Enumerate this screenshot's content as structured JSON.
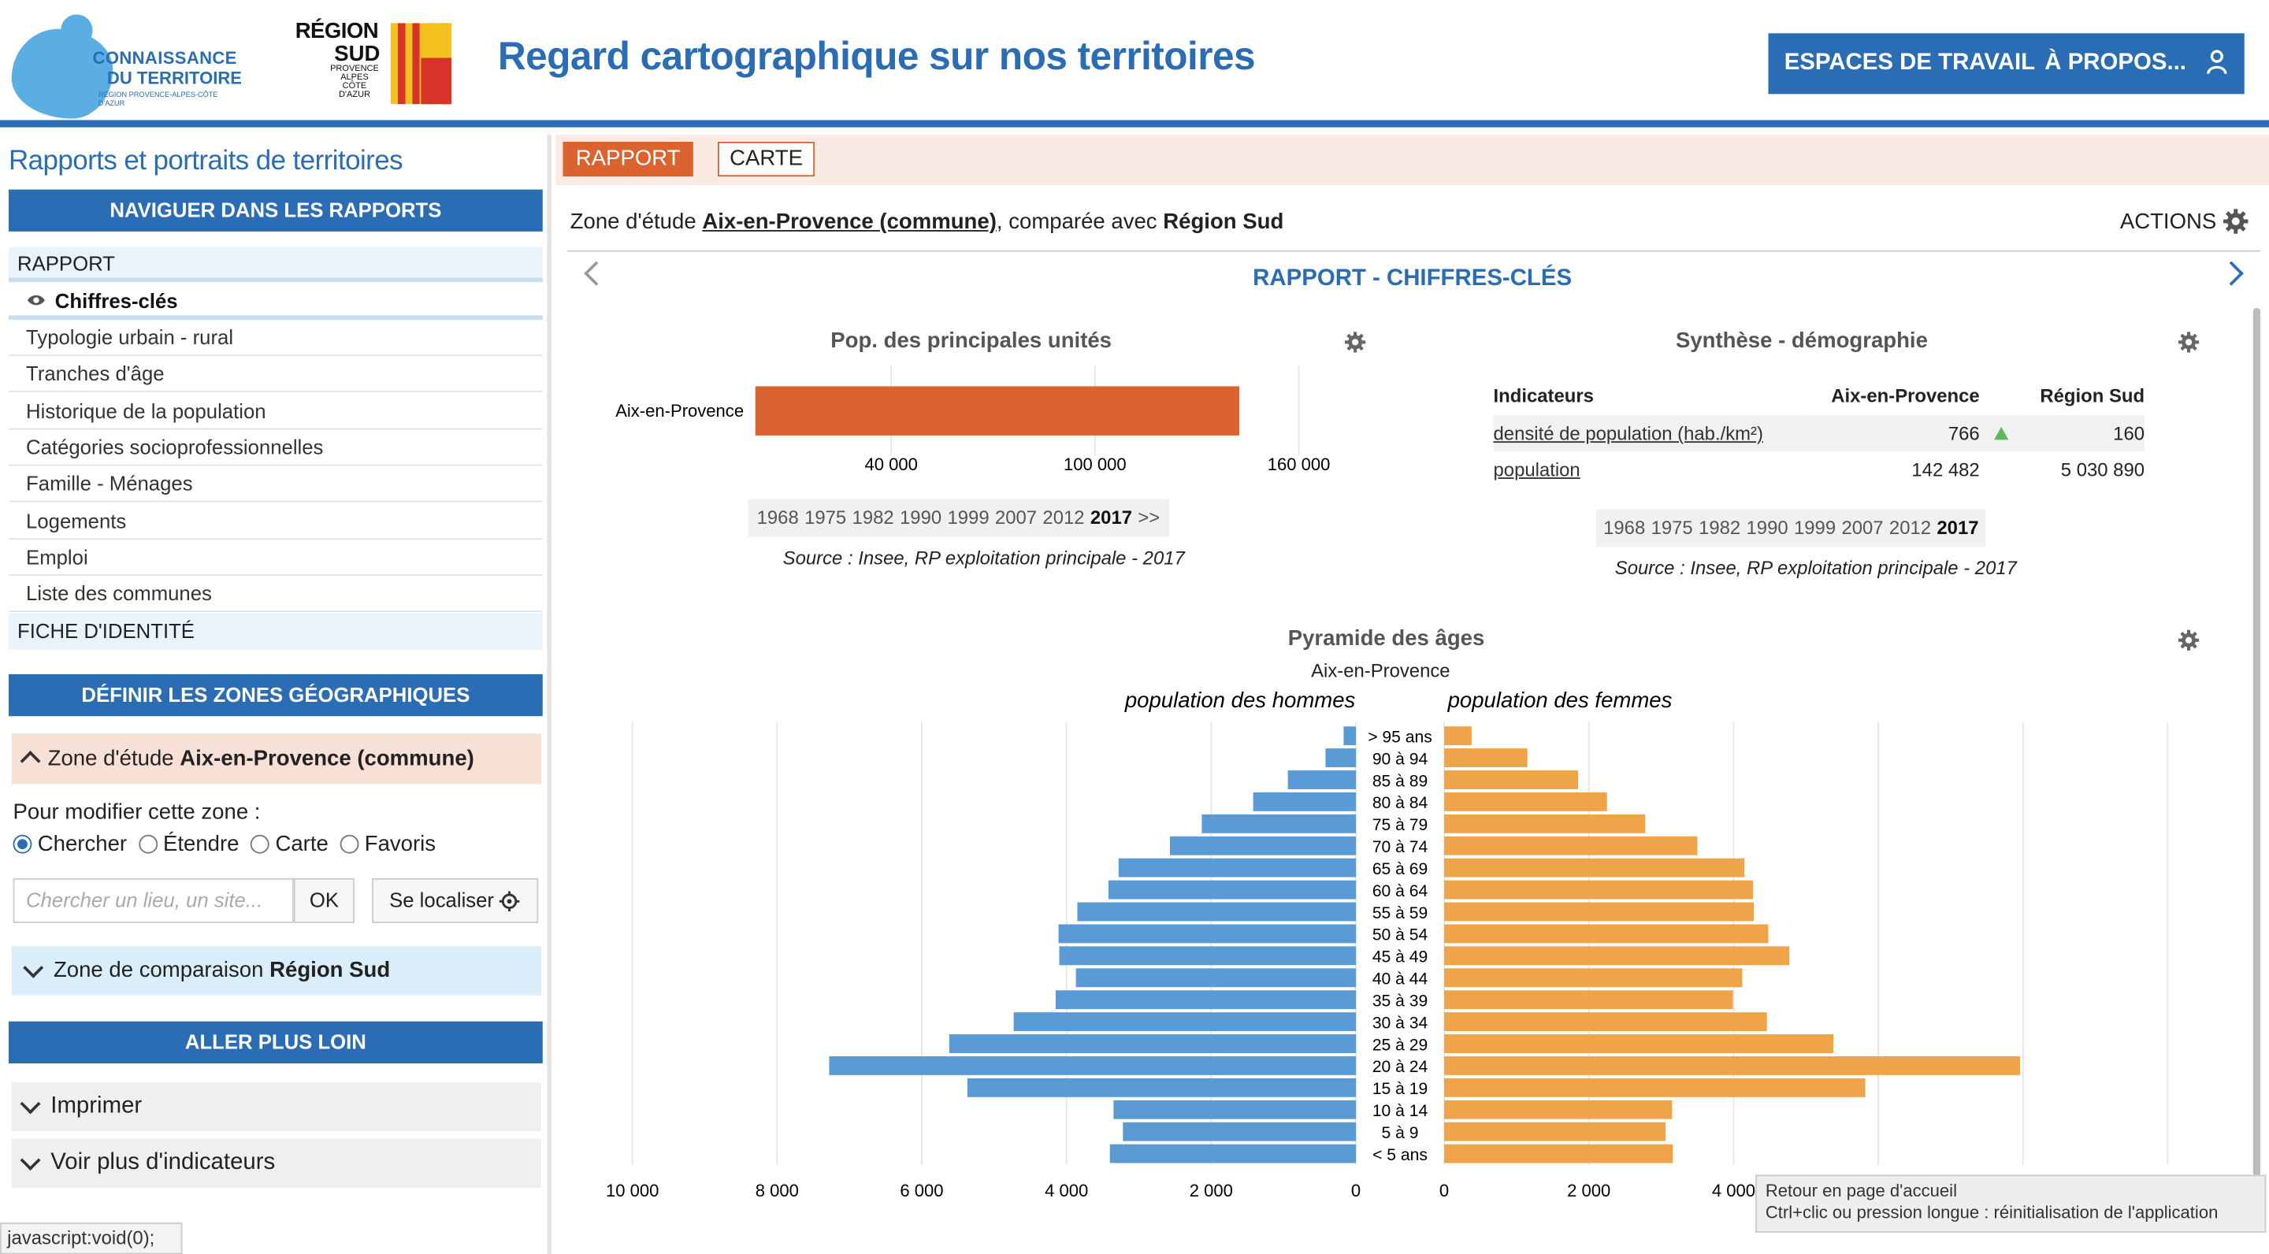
{
  "header": {
    "logo_ct": {
      "line1": "CONNAISSANCE",
      "line2": "DU TERRITOIRE",
      "tagline": "RÉGION PROVENCE-ALPES-CÔTE D'AZUR"
    },
    "logo_rs": {
      "line1": "RÉGION",
      "line2": "SUD",
      "line3": "PROVENCE ALPES CÔTE D'AZUR"
    },
    "title": "Regard cartographique sur nos territoires",
    "nav": {
      "workspaces": "ESPACES DE TRAVAIL",
      "about": "À PROPOS...",
      "user_icon": "user-icon"
    }
  },
  "sidebar": {
    "title": "Rapports et portraits de territoires",
    "nav_button": "NAVIGUER DANS LES RAPPORTS",
    "report_header": "RAPPORT",
    "selected_item": "Chiffres-clés",
    "items": [
      "Typologie urbain - rural",
      "Tranches d'âge",
      "Historique de la population",
      "Catégories socioprofessionnelles",
      "Famille - Ménages",
      "Logements",
      "Emploi",
      "Liste des communes"
    ],
    "fiche": "FICHE D'IDENTITÉ",
    "zones_button": "DÉFINIR LES ZONES GÉOGRAPHIQUES",
    "zone_etude": {
      "prefix": "Zone d'étude ",
      "name": "Aix-en-Provence (commune)"
    },
    "modify_label": "Pour modifier cette zone :",
    "radios": [
      {
        "label": "Chercher",
        "checked": true
      },
      {
        "label": "Étendre",
        "checked": false
      },
      {
        "label": "Carte",
        "checked": false
      },
      {
        "label": "Favoris",
        "checked": false
      }
    ],
    "search_placeholder": "Chercher un lieu, un site...",
    "ok": "OK",
    "locate": "Se localiser",
    "zone_comp": {
      "prefix": "Zone de comparaison ",
      "name": "Région Sud"
    },
    "further_button": "ALLER PLUS LOIN",
    "print": "Imprimer",
    "more": "Voir plus d'indicateurs"
  },
  "status_bar": "javascript:void(0);",
  "main": {
    "tabs": {
      "report": "RAPPORT",
      "map": "CARTE"
    },
    "zone_line": {
      "prefix": "Zone d'étude ",
      "zone": "Aix-en-Provence (commune)",
      "mid": ", comparée avec ",
      "comp": "Région Sud"
    },
    "actions": "ACTIONS",
    "report_title": "RAPPORT - CHIFFRES-CLÉS",
    "years": [
      "1968",
      "1975",
      "1982",
      "1990",
      "1999",
      "2007",
      "2012",
      "2017"
    ],
    "years_more": ">>",
    "source": "Source : Insee, RP exploitation principale - 2017",
    "synthese": {
      "title": "Synthèse - démographie",
      "headers": [
        "Indicateurs",
        "Aix-en-Provence",
        "Région Sud"
      ],
      "rows": [
        {
          "label": "densité de population (hab./km²)",
          "a": "766",
          "b": "160",
          "arrow": "up",
          "arrow_color": "#5cb85c"
        },
        {
          "label": "population",
          "a": "142 482",
          "b": "5 030 890"
        }
      ]
    }
  },
  "tooltip": {
    "line1": "Retour en page d'accueil",
    "line2": "Ctrl+clic ou pression longue : réinitialisation de l'application"
  },
  "chart_data": [
    {
      "type": "bar",
      "title": "Pop. des principales unités",
      "categories": [
        "Aix-en-Provence"
      ],
      "values": [
        142482
      ],
      "xticks": [
        "40 000",
        "100 000",
        "160 000"
      ],
      "xlim": [
        0,
        170000
      ],
      "color": "#db6330"
    },
    {
      "type": "bar",
      "title": "Pyramide des âges",
      "subtitle": "Aix-en-Provence",
      "categories": [
        "> 95 ans",
        "90 à 94",
        "85 à 89",
        "80 à 84",
        "75 à 79",
        "70 à 74",
        "65 à 69",
        "60 à 64",
        "55 à 59",
        "50 à 54",
        "45 à 49",
        "40 à 44",
        "35 à 39",
        "30 à 34",
        "25 à 29",
        "20 à 24",
        "15 à 19",
        "10 à 14",
        "5 à 9",
        "< 5 ans"
      ],
      "series": [
        {
          "name": "population des hommes",
          "color": "#5b9bd5",
          "values": [
            170,
            420,
            940,
            1420,
            2130,
            2570,
            3280,
            3420,
            3850,
            4110,
            4100,
            3870,
            4150,
            4730,
            5620,
            7280,
            5370,
            3350,
            3220,
            3400
          ]
        },
        {
          "name": "population des femmes",
          "color": "#f0a44a",
          "values": [
            380,
            1150,
            1850,
            2250,
            2780,
            3500,
            4150,
            4270,
            4280,
            4480,
            4770,
            4120,
            3990,
            4460,
            5380,
            7960,
            5820,
            3150,
            3060,
            3160
          ]
        }
      ],
      "left_ticks": [
        "10 000",
        "8 000",
        "6 000",
        "4 000",
        "2 000",
        "0"
      ],
      "right_ticks": [
        "0",
        "2 000",
        "4 000"
      ],
      "xlim": [
        0,
        10000
      ]
    }
  ]
}
